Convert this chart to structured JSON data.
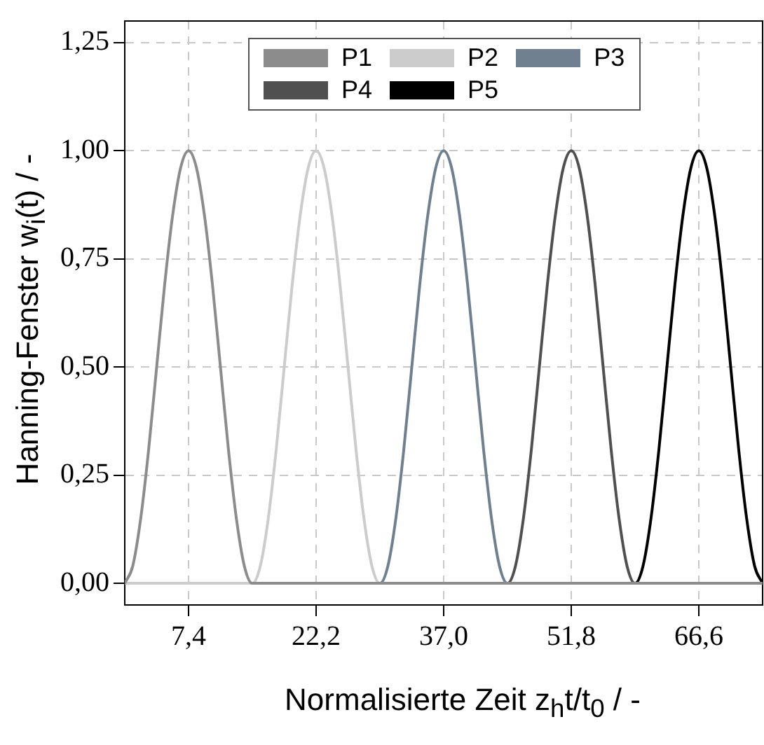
{
  "chart_data": {
    "type": "line",
    "xlabel": "Normalisierte Zeit z$_{h}$t/t$_{0}$ / -",
    "ylabel": "Hanning-Fenster w$_{i}$(t) / -",
    "xlim": [
      0,
      74
    ],
    "ylim": [
      -0.05,
      1.3
    ],
    "xticks": [
      {
        "value": 7.4,
        "label": "7,4"
      },
      {
        "value": 22.2,
        "label": "22,2"
      },
      {
        "value": 37,
        "label": "37,0"
      },
      {
        "value": 51.8,
        "label": "51,8"
      },
      {
        "value": 66.6,
        "label": "66,6"
      }
    ],
    "yticks": [
      {
        "value": 0,
        "label": "0,00"
      },
      {
        "value": 0.25,
        "label": "0,25"
      },
      {
        "value": 0.5,
        "label": "0,50"
      },
      {
        "value": 0.75,
        "label": "0,75"
      },
      {
        "value": 1,
        "label": "1,00"
      },
      {
        "value": 1.25,
        "label": "1,25"
      }
    ],
    "grid": true,
    "legend": "top",
    "marker": "none",
    "line_style": "solid",
    "series": [
      {
        "name": "P1",
        "color": "#8c8c8c",
        "x": [
          0,
          0.925,
          1.85,
          2.775,
          3.7,
          4.625,
          5.55,
          6.475,
          7.4,
          8.325,
          9.25,
          10.175,
          11.1,
          12.025,
          12.95,
          13.875,
          14.8,
          74
        ],
        "values": [
          0,
          0.04,
          0.15,
          0.31,
          0.5,
          0.69,
          0.85,
          0.96,
          1,
          0.96,
          0.85,
          0.69,
          0.5,
          0.31,
          0.15,
          0.04,
          0,
          0
        ]
      },
      {
        "name": "P2",
        "color": "#cccccc",
        "x": [
          0,
          14.8,
          15.725,
          16.65,
          17.575,
          18.5,
          19.425,
          20.35,
          21.275,
          22.2,
          23.125,
          24.05,
          24.975,
          25.9,
          26.825,
          27.75,
          28.675,
          29.6,
          74
        ],
        "values": [
          0,
          0,
          0.04,
          0.15,
          0.31,
          0.5,
          0.69,
          0.85,
          0.96,
          1,
          0.96,
          0.85,
          0.69,
          0.5,
          0.31,
          0.15,
          0.04,
          0,
          0
        ]
      },
      {
        "name": "P3",
        "color": "#708090",
        "x": [
          0,
          29.6,
          30.525,
          31.45,
          32.375,
          33.3,
          34.225,
          35.15,
          36.075,
          37,
          37.925,
          38.85,
          39.775,
          40.7,
          41.625,
          42.55,
          43.475,
          44.4,
          74
        ],
        "values": [
          0,
          0,
          0.04,
          0.15,
          0.31,
          0.5,
          0.69,
          0.85,
          0.96,
          1,
          0.96,
          0.85,
          0.69,
          0.5,
          0.31,
          0.15,
          0.04,
          0,
          0
        ]
      },
      {
        "name": "P4",
        "color": "#505050",
        "x": [
          0,
          44.4,
          45.325,
          46.25,
          47.175,
          48.1,
          49.025,
          49.95,
          50.875,
          51.8,
          52.725,
          53.65,
          54.575,
          55.5,
          56.425,
          57.35,
          58.275,
          59.2,
          74
        ],
        "values": [
          0,
          0,
          0.04,
          0.15,
          0.31,
          0.5,
          0.69,
          0.85,
          0.96,
          1,
          0.96,
          0.85,
          0.69,
          0.5,
          0.31,
          0.15,
          0.04,
          0,
          0
        ]
      },
      {
        "name": "P5",
        "color": "#000000",
        "x": [
          0,
          59.2,
          60.125,
          61.05,
          61.975,
          62.9,
          63.825,
          64.75,
          65.675,
          66.6,
          67.525,
          68.45,
          69.375,
          70.3,
          71.225,
          72.15,
          73.075,
          74
        ],
        "values": [
          0,
          0,
          0.04,
          0.15,
          0.31,
          0.5,
          0.69,
          0.85,
          0.96,
          1,
          0.96,
          0.85,
          0.69,
          0.5,
          0.31,
          0.15,
          0.04,
          0
        ]
      }
    ]
  }
}
